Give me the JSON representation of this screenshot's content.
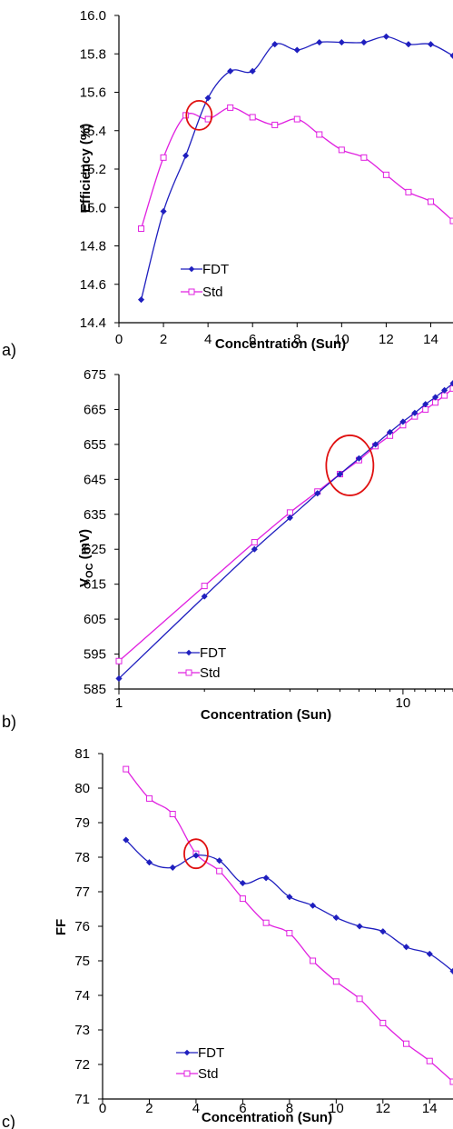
{
  "chart_data": [
    {
      "panel_label": "a)",
      "type": "line",
      "xlabel": "Concentration (Sun)",
      "ylabel": "Efficiency (%)",
      "xlim": [
        0,
        15
      ],
      "ylim": [
        14.4,
        16.0
      ],
      "xticks": [
        0,
        2,
        4,
        6,
        8,
        10,
        12,
        14
      ],
      "yticks": [
        "14.4",
        "14.6",
        "14.8",
        "15.0",
        "15.2",
        "15.4",
        "15.6",
        "15.8",
        "16.0"
      ],
      "series": [
        {
          "name": "FDT",
          "color": "#1f1fbf",
          "marker": "diamond",
          "x": [
            1,
            2,
            3,
            4,
            5,
            6,
            7,
            8,
            9,
            10,
            11,
            12,
            13,
            14,
            15
          ],
          "y": [
            14.52,
            14.98,
            15.27,
            15.57,
            15.71,
            15.71,
            15.85,
            15.82,
            15.86,
            15.86,
            15.86,
            15.89,
            15.85,
            15.85,
            15.79
          ]
        },
        {
          "name": "Std",
          "color": "#e020e0",
          "marker": "square",
          "x": [
            1,
            2,
            3,
            4,
            5,
            6,
            7,
            8,
            9,
            10,
            11,
            12,
            13,
            14,
            15
          ],
          "y": [
            14.89,
            15.26,
            15.48,
            15.46,
            15.52,
            15.47,
            15.43,
            15.46,
            15.38,
            15.3,
            15.26,
            15.17,
            15.08,
            15.03,
            14.93
          ]
        }
      ],
      "highlight_circle": {
        "x": 3.6,
        "y": 15.48,
        "color": "#e01010"
      },
      "legend_placement": "bottom-left"
    },
    {
      "panel_label": "b)",
      "type": "line",
      "xscale": "log",
      "xlabel": "Concentration (Sun)",
      "ylabel_main": "V",
      "ylabel_sub": "OC",
      "ylabel_unit": " (mV)",
      "xlim": [
        1,
        15
      ],
      "ylim": [
        585,
        675
      ],
      "xticks": [
        "1",
        "10"
      ],
      "yticks": [
        "585",
        "595",
        "605",
        "615",
        "625",
        "635",
        "645",
        "655",
        "665",
        "675"
      ],
      "series": [
        {
          "name": "FDT",
          "color": "#1f1fbf",
          "marker": "diamond",
          "x": [
            1,
            2,
            3,
            4,
            5,
            6,
            7,
            8,
            9,
            10,
            11,
            12,
            13,
            14,
            15
          ],
          "y": [
            588,
            611.5,
            625,
            634,
            641,
            646.5,
            651,
            655,
            658.5,
            661.5,
            664,
            666.5,
            668.5,
            670.5,
            672.5
          ]
        },
        {
          "name": "Std",
          "color": "#e020e0",
          "marker": "square",
          "x": [
            1,
            2,
            3,
            4,
            5,
            6,
            7,
            8,
            9,
            10,
            11,
            12,
            13,
            14,
            15
          ],
          "y": [
            593,
            614.5,
            627,
            635.5,
            641.5,
            646.5,
            650.5,
            654.5,
            657.5,
            660.5,
            663,
            665,
            667,
            669,
            671
          ]
        }
      ],
      "highlight_circle": {
        "x": 6.5,
        "y": 649,
        "color": "#e01010"
      },
      "legend_placement": "bottom-left"
    },
    {
      "panel_label": "c)",
      "type": "line",
      "xlabel": "Concentration (Sun)",
      "ylabel": "FF",
      "xlim": [
        0,
        15
      ],
      "ylim": [
        71,
        81
      ],
      "xticks": [
        0,
        2,
        4,
        6,
        8,
        10,
        12,
        14
      ],
      "yticks": [
        "71",
        "72",
        "73",
        "74",
        "75",
        "76",
        "77",
        "78",
        "79",
        "80",
        "81"
      ],
      "series": [
        {
          "name": "FDT",
          "color": "#1f1fbf",
          "marker": "diamond",
          "x": [
            1,
            2,
            3,
            4,
            5,
            6,
            7,
            8,
            9,
            10,
            11,
            12,
            13,
            14,
            15
          ],
          "y": [
            78.5,
            77.85,
            77.7,
            78.05,
            77.9,
            77.25,
            77.4,
            76.85,
            76.6,
            76.25,
            76.0,
            75.85,
            75.4,
            75.2,
            74.7
          ]
        },
        {
          "name": "Std",
          "color": "#e020e0",
          "marker": "square",
          "x": [
            1,
            2,
            3,
            4,
            5,
            6,
            7,
            8,
            9,
            10,
            11,
            12,
            13,
            14,
            15
          ],
          "y": [
            80.55,
            79.7,
            79.25,
            78.1,
            77.6,
            76.8,
            76.1,
            75.8,
            75.0,
            74.4,
            73.9,
            73.2,
            72.6,
            72.1,
            71.5
          ]
        }
      ],
      "highlight_circle": {
        "x": 4.0,
        "y": 78.1,
        "color": "#e01010"
      },
      "legend_placement": "bottom-left"
    }
  ]
}
